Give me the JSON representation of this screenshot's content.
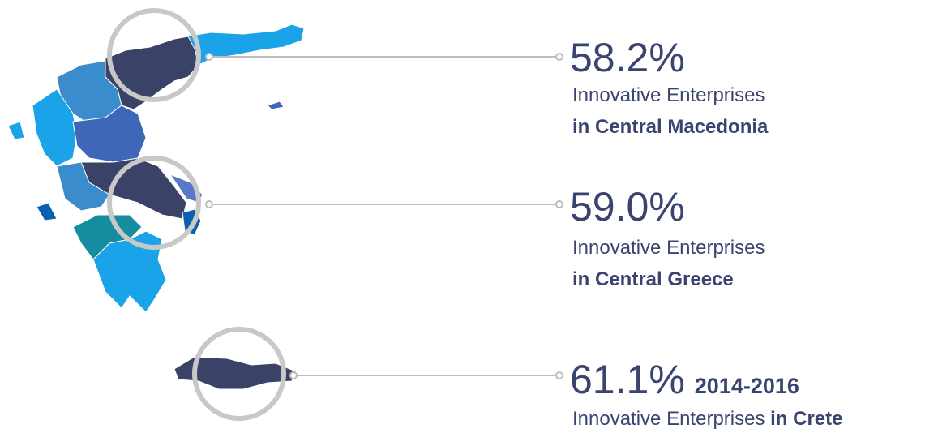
{
  "callouts": [
    {
      "value": "58.2%",
      "line1": "Innovative Enterprises",
      "line2": "in Central Macedonia"
    },
    {
      "value": "59.0%",
      "line1": "Innovative Enterprises",
      "line2": "in Central Greece"
    },
    {
      "value": "61.1%",
      "period": "2014-2016",
      "line1": "Innovative Enterprises",
      "line2": "in Crete"
    }
  ]
}
